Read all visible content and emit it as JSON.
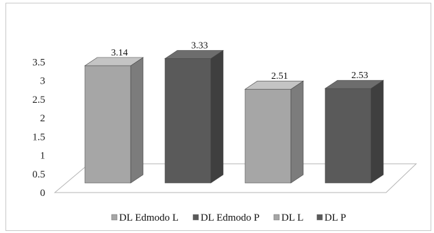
{
  "chart_data": {
    "type": "bar",
    "categories": [
      "DL Edmodo L",
      "DL Edmodo P",
      "DL L",
      "DL P"
    ],
    "values": [
      3.14,
      3.33,
      2.51,
      2.53
    ],
    "value_labels": [
      "3.14",
      "3.33",
      "2.51",
      "2.53"
    ],
    "y_ticks": [
      "0",
      "0.5",
      "1",
      "1.5",
      "2",
      "2.5",
      "3",
      "3.5"
    ],
    "ylim": [
      0,
      3.5
    ],
    "title": "",
    "xlabel": "",
    "ylabel": "",
    "style": "3d-column",
    "grid": false,
    "legend_position": "bottom",
    "colors": {
      "light_front": "#a6a6a6",
      "light_side": "#7c7c7c",
      "light_top": "#c4c4c4",
      "dark_front": "#5a5a5a",
      "dark_side": "#3f3f3f",
      "dark_top": "#6d6d6d"
    },
    "legend": [
      {
        "label": "DL Edmodo L",
        "shade": "light"
      },
      {
        "label": "DL Edmodo P",
        "shade": "dark"
      },
      {
        "label": "DL L",
        "shade": "light"
      },
      {
        "label": "DL P",
        "shade": "dark"
      }
    ]
  }
}
